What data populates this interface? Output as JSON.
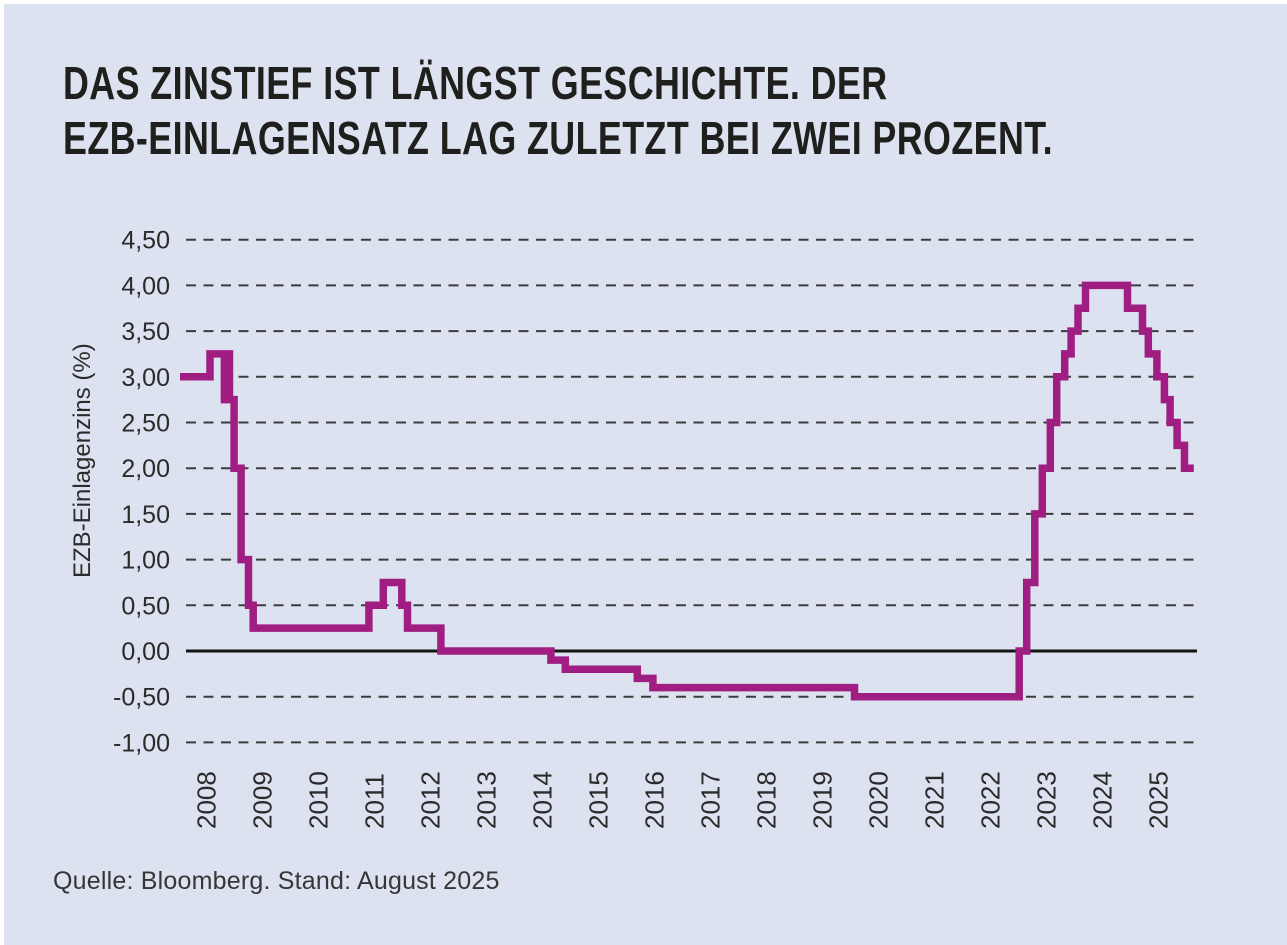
{
  "title": {
    "line1": "DAS ZINSTIEF IST LÄNGST GESCHICHTE. DER",
    "line2": "EZB-EINLAGENSATZ LAG ZULETZT BEI ZWEI PROZENT."
  },
  "source": "Quelle: Bloomberg. Stand: August 2025",
  "colors": {
    "background": "#dde2f0",
    "line": "#a01e82",
    "title_text": "#1f1f1d",
    "axis_text": "#2b2b2b",
    "gridline": "#3c3c3e",
    "zero_line": "#141414"
  },
  "chart_data": {
    "type": "line",
    "line_style": "step-after",
    "title": "Das Zinstief ist längst Geschichte. Der EZB-Einlagensatz lag zuletzt bei zwei Prozent.",
    "xlabel": "",
    "ylabel": "EZB-Einlagenzins (%)",
    "xlim": [
      2008.0,
      2025.6
    ],
    "ylim": [
      -1.0,
      4.5
    ],
    "grid": "horizontal-dashed, solid line at zero",
    "legend": "none",
    "y_ticks": [
      {
        "label": "4,50",
        "value": 4.5
      },
      {
        "label": "4,00",
        "value": 4.0
      },
      {
        "label": "3,50",
        "value": 3.5
      },
      {
        "label": "3,00",
        "value": 3.0
      },
      {
        "label": "2,50",
        "value": 2.5
      },
      {
        "label": "2,00",
        "value": 2.0
      },
      {
        "label": "1,50",
        "value": 1.5
      },
      {
        "label": "1,00",
        "value": 1.0
      },
      {
        "label": "0,50",
        "value": 0.5
      },
      {
        "label": "0,00",
        "value": 0.0
      },
      {
        "label": "-0,50",
        "value": -0.5
      },
      {
        "label": "-1,00",
        "value": -1.0
      }
    ],
    "x_ticks": [
      {
        "label": "2008",
        "year": 2008
      },
      {
        "label": "2009",
        "year": 2009
      },
      {
        "label": "2010",
        "year": 2010
      },
      {
        "label": "2011",
        "year": 2011
      },
      {
        "label": "2012",
        "year": 2012
      },
      {
        "label": "2013",
        "year": 2013
      },
      {
        "label": "2014",
        "year": 2014
      },
      {
        "label": "2015",
        "year": 2015
      },
      {
        "label": "2016",
        "year": 2016
      },
      {
        "label": "2017",
        "year": 2017
      },
      {
        "label": "2018",
        "year": 2018
      },
      {
        "label": "2019",
        "year": 2019
      },
      {
        "label": "2020",
        "year": 2020
      },
      {
        "label": "2021",
        "year": 2021
      },
      {
        "label": "2022",
        "year": 2022
      },
      {
        "label": "2023",
        "year": 2023
      },
      {
        "label": "2024",
        "year": 2024
      },
      {
        "label": "2025",
        "year": 2025
      }
    ],
    "series": [
      {
        "name": "EZB-Einlagenzins (%)",
        "points": [
          [
            2008.0,
            3.0
          ],
          [
            2008.52,
            3.25
          ],
          [
            2008.77,
            2.75
          ],
          [
            2008.79,
            3.25
          ],
          [
            2008.86,
            2.75
          ],
          [
            2008.94,
            2.0
          ],
          [
            2009.06,
            1.0
          ],
          [
            2009.19,
            0.5
          ],
          [
            2009.27,
            0.25
          ],
          [
            2011.28,
            0.5
          ],
          [
            2011.53,
            0.75
          ],
          [
            2011.85,
            0.5
          ],
          [
            2011.95,
            0.25
          ],
          [
            2012.53,
            0.0
          ],
          [
            2014.44,
            -0.1
          ],
          [
            2014.69,
            -0.2
          ],
          [
            2015.94,
            -0.3
          ],
          [
            2016.21,
            -0.4
          ],
          [
            2019.71,
            -0.5
          ],
          [
            2022.57,
            0.0
          ],
          [
            2022.7,
            0.75
          ],
          [
            2022.84,
            1.5
          ],
          [
            2022.97,
            2.0
          ],
          [
            2023.11,
            2.5
          ],
          [
            2023.22,
            3.0
          ],
          [
            2023.36,
            3.25
          ],
          [
            2023.47,
            3.5
          ],
          [
            2023.59,
            3.75
          ],
          [
            2023.72,
            4.0
          ],
          [
            2024.45,
            3.75
          ],
          [
            2024.71,
            3.5
          ],
          [
            2024.81,
            3.25
          ],
          [
            2024.96,
            3.0
          ],
          [
            2025.09,
            2.75
          ],
          [
            2025.19,
            2.5
          ],
          [
            2025.31,
            2.25
          ],
          [
            2025.44,
            2.0
          ],
          [
            2025.6,
            2.0
          ]
        ]
      }
    ]
  }
}
